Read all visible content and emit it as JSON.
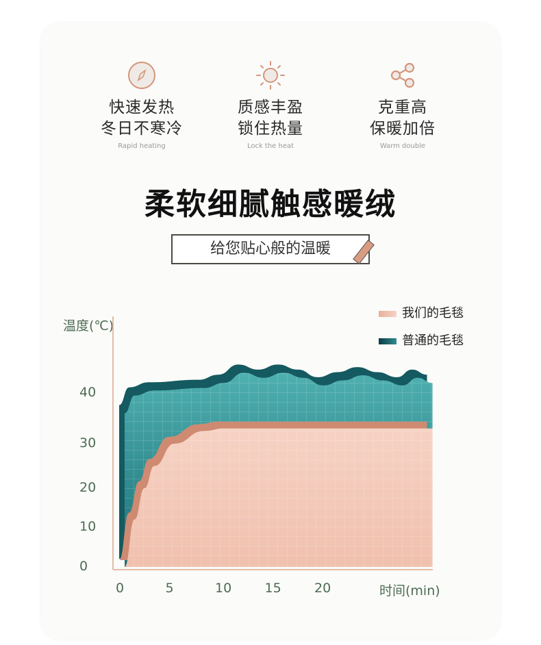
{
  "features": [
    {
      "icon": "compass-icon",
      "title1": "快速发热",
      "title2": "冬日不寒冷",
      "subtitle": "Rapid heating"
    },
    {
      "icon": "sun-icon",
      "title1": "质感丰盈",
      "title2": "锁住热量",
      "subtitle": "Lock the heat"
    },
    {
      "icon": "share-icon",
      "title1": "克重高",
      "title2": "保暖加倍",
      "subtitle": "Warm double"
    }
  ],
  "headline": "柔软细腻触感暖绒",
  "subheadline": "给您贴心般的温暖",
  "colors": {
    "accent": "#d4967a",
    "ours": "#f2c2b0",
    "ordinary": "#2f8d8e"
  },
  "chart_data": {
    "type": "area",
    "ylabel": "温度(℃)",
    "xlabel": "时间(min)",
    "x_ticks": [
      "0",
      "5",
      "10",
      "15",
      "20"
    ],
    "y_ticks": [
      "0",
      "10",
      "20",
      "30",
      "40"
    ],
    "grid": false,
    "legend_position": "top-right",
    "series": [
      {
        "name": "我们的毛毯",
        "color": "#f2c2b0",
        "points": [
          [
            0,
            0
          ],
          [
            1,
            12
          ],
          [
            2,
            20
          ],
          [
            3,
            25
          ],
          [
            5,
            30
          ],
          [
            8,
            32.5
          ],
          [
            10,
            33
          ],
          [
            15,
            33
          ],
          [
            20,
            33
          ],
          [
            25,
            33
          ],
          [
            31,
            33
          ]
        ]
      },
      {
        "name": "普通的毛毯",
        "color": "#2f8d8e",
        "points": [
          [
            0,
            36
          ],
          [
            1,
            39.5
          ],
          [
            3,
            40.5
          ],
          [
            8,
            41
          ],
          [
            10,
            42
          ],
          [
            12,
            44
          ],
          [
            14,
            43
          ],
          [
            16,
            44
          ],
          [
            18,
            43
          ],
          [
            20,
            41.5
          ],
          [
            22,
            42.5
          ],
          [
            24,
            43.5
          ],
          [
            26,
            42.5
          ],
          [
            28,
            41.5
          ],
          [
            29.5,
            43
          ],
          [
            31,
            42
          ]
        ]
      }
    ]
  }
}
